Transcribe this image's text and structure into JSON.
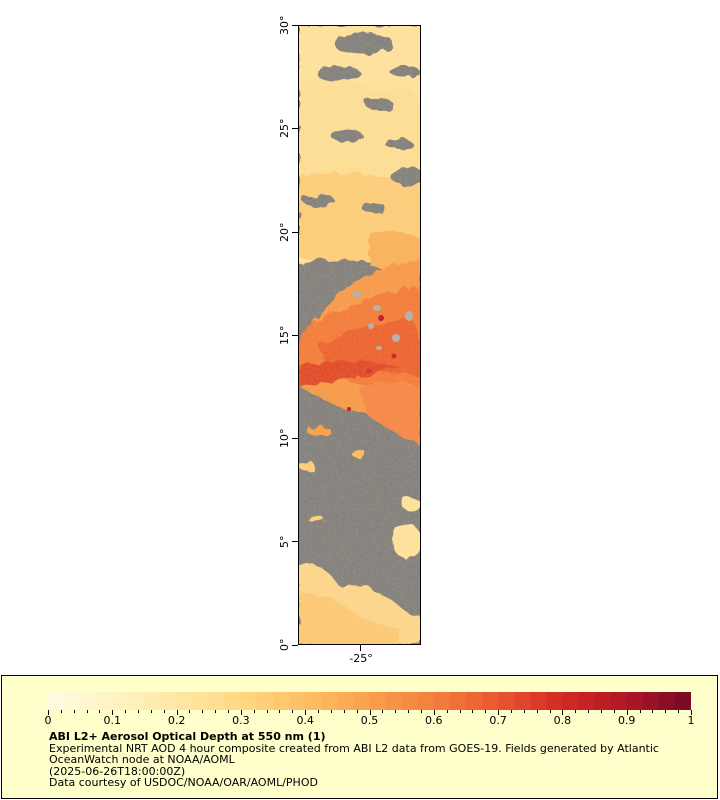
{
  "map": {
    "lat_labels": [
      "0°",
      "5°",
      "10°",
      "15°",
      "20°",
      "25°",
      "30°"
    ],
    "lon_label": "-25°",
    "land_color": "#808080",
    "missing_color": "#b0b0b0"
  },
  "legend": {
    "title": "ABI L2+ Aerosol Optical Depth at 550 nm (1)",
    "line1": "Experimental NRT AOD 4 hour composite created from ABI L2 data from GOES-19. Fields generated by Atlantic OceanWatch node at NOAA/AOML",
    "line2": "(2025-06-26T18:00:00Z)",
    "line3": "Data courtesy of USDOC/NOAA/OAR/AOML/PHOD",
    "scale_labels": [
      "0",
      "0.1",
      "0.2",
      "0.3",
      "0.4",
      "0.5",
      "0.6",
      "0.7",
      "0.8",
      "0.9",
      "1"
    ],
    "scale_min": 0,
    "scale_max": 1,
    "colors": [
      "#fffbe0",
      "#fff2c2",
      "#ffe6a4",
      "#ffd782",
      "#fdbe64",
      "#f9a04c",
      "#f57f3e",
      "#ea5a30",
      "#d42c24",
      "#b31826",
      "#7e0b25"
    ]
  }
}
